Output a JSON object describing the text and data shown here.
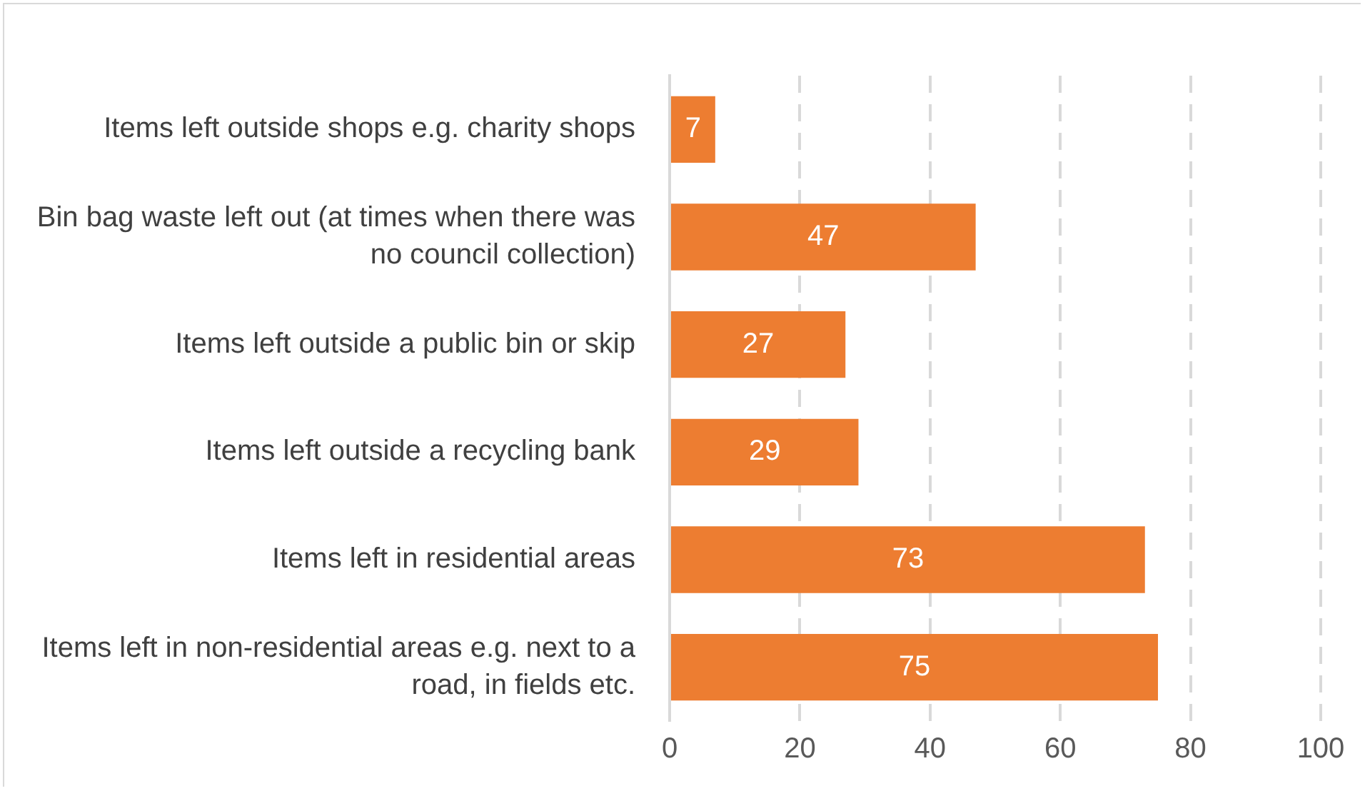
{
  "chart_data": {
    "type": "bar",
    "orientation": "horizontal",
    "categories": [
      "Items left outside shops e.g. charity shops",
      "Bin bag waste left out (at times when there was no council collection)",
      "Items left outside a public bin or skip",
      "Items left outside a recycling bank",
      "Items left in residential areas",
      "Items left in non-residential areas e.g. next to a road, in fields etc."
    ],
    "values": [
      7,
      47,
      27,
      29,
      73,
      75
    ],
    "color": "#ed7d31",
    "xlim": [
      0,
      100
    ],
    "xticks": [
      0,
      20,
      40,
      60,
      80,
      100
    ],
    "grid": "x",
    "data_labels": true,
    "legend": false
  }
}
